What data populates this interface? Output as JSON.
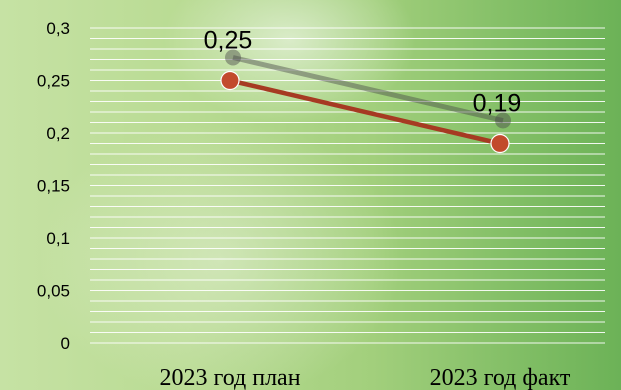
{
  "chart_data": {
    "type": "line",
    "categories": [
      "2023 год план",
      "2023 год факт"
    ],
    "series": [
      {
        "values": [
          0.25,
          0.19
        ],
        "data_labels": [
          "0,25",
          "0,19"
        ],
        "color": "#a63a22",
        "marker_color": "#c24a2c"
      }
    ],
    "y_ticks": [
      "0",
      "0,05",
      "0,1",
      "0,15",
      "0,2",
      "0,25",
      "0,3"
    ],
    "ylim": [
      0,
      0.3
    ],
    "y_step": 0.05,
    "grid": true,
    "grid_color": "#ffffff",
    "title": "",
    "xlabel": "",
    "ylabel": ""
  }
}
